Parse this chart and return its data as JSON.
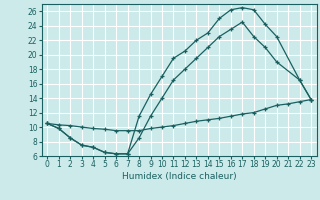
{
  "xlabel": "Humidex (Indice chaleur)",
  "bg_color": "#cceaea",
  "grid_color": "#ffffff",
  "line_color": "#1a6060",
  "xlim": [
    -0.5,
    23.5
  ],
  "ylim": [
    6,
    27
  ],
  "yticks": [
    6,
    8,
    10,
    12,
    14,
    16,
    18,
    20,
    22,
    24,
    26
  ],
  "xticks": [
    0,
    1,
    2,
    3,
    4,
    5,
    6,
    7,
    8,
    9,
    10,
    11,
    12,
    13,
    14,
    15,
    16,
    17,
    18,
    19,
    20,
    21,
    22,
    23
  ],
  "curve1_x": [
    0,
    1,
    2,
    3,
    4,
    5,
    6,
    7,
    8,
    9,
    10,
    11,
    12,
    13,
    14,
    15,
    16,
    17,
    18,
    19,
    20,
    22,
    23
  ],
  "curve1_y": [
    10.5,
    9.8,
    8.5,
    7.5,
    7.2,
    6.5,
    6.3,
    6.3,
    8.5,
    11.5,
    14.0,
    16.5,
    18.0,
    19.5,
    21.0,
    22.5,
    23.5,
    24.5,
    22.5,
    21.0,
    19.0,
    16.5,
    13.8
  ],
  "curve2_x": [
    0,
    1,
    2,
    3,
    4,
    5,
    6,
    7,
    8,
    9,
    10,
    11,
    12,
    13,
    14,
    15,
    16,
    17,
    18,
    19,
    20,
    22,
    23
  ],
  "curve2_y": [
    10.5,
    9.8,
    8.5,
    7.5,
    7.2,
    6.5,
    6.3,
    6.3,
    11.5,
    14.5,
    17.0,
    19.5,
    20.5,
    22.0,
    23.0,
    25.0,
    26.2,
    26.5,
    26.2,
    24.2,
    22.5,
    16.5,
    13.8
  ],
  "curve3_x": [
    0,
    1,
    2,
    3,
    4,
    5,
    6,
    7,
    8,
    9,
    10,
    11,
    12,
    13,
    14,
    15,
    16,
    17,
    18,
    19,
    20,
    21,
    22,
    23
  ],
  "curve3_y": [
    10.5,
    10.3,
    10.2,
    10.0,
    9.8,
    9.7,
    9.5,
    9.5,
    9.5,
    9.8,
    10.0,
    10.2,
    10.5,
    10.8,
    11.0,
    11.2,
    11.5,
    11.8,
    12.0,
    12.5,
    13.0,
    13.2,
    13.5,
    13.8
  ]
}
